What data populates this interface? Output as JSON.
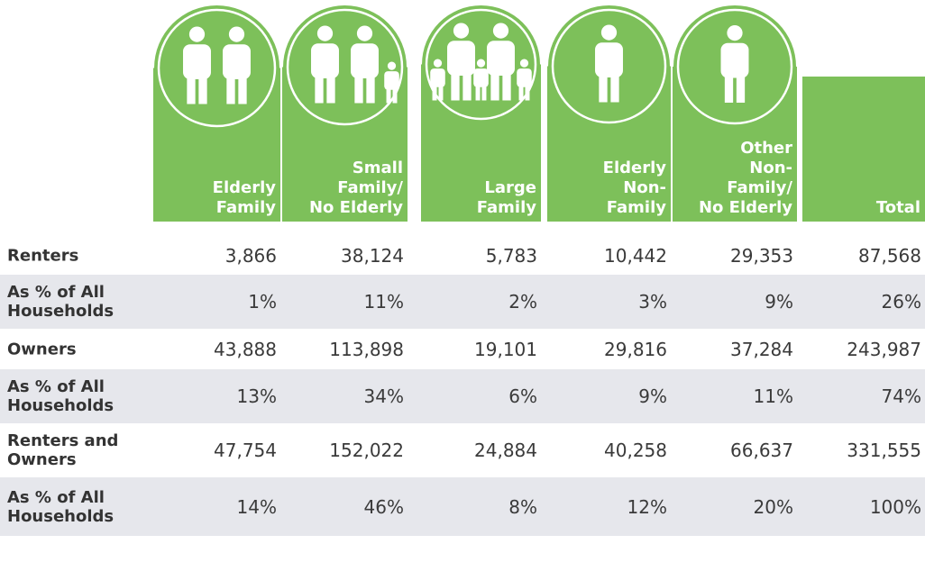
{
  "table": {
    "columns": [
      [
        "Elderly",
        "Family"
      ],
      [
        "Small",
        "Family/",
        "No Elderly"
      ],
      [
        "Large",
        "Family"
      ],
      [
        "Elderly",
        "Non-",
        "Family"
      ],
      [
        "Other",
        "Non-",
        "Family/",
        "No Elderly"
      ],
      [
        "Total"
      ]
    ],
    "rows": [
      {
        "label": "Renters",
        "cells": [
          "3,866",
          "38,124",
          "5,783",
          "10,442",
          "29,353",
          "87,568"
        ]
      },
      {
        "label": "As % of All Households",
        "cells": [
          "1%",
          "11%",
          "2%",
          "3%",
          "9%",
          "26%"
        ]
      },
      {
        "label": "Owners",
        "cells": [
          "43,888",
          "113,898",
          "19,101",
          "29,816",
          "37,284",
          "243,987"
        ]
      },
      {
        "label": "As % of All Households",
        "cells": [
          "13%",
          "34%",
          "6%",
          "9%",
          "11%",
          "74%"
        ]
      },
      {
        "label": "Renters and Owners",
        "cells": [
          "47,754",
          "152,022",
          "24,884",
          "40,258",
          "66,637",
          "331,555"
        ]
      },
      {
        "label": "As % of All Households",
        "cells": [
          "14%",
          "46%",
          "8%",
          "12%",
          "20%",
          "100%"
        ]
      }
    ]
  }
}
